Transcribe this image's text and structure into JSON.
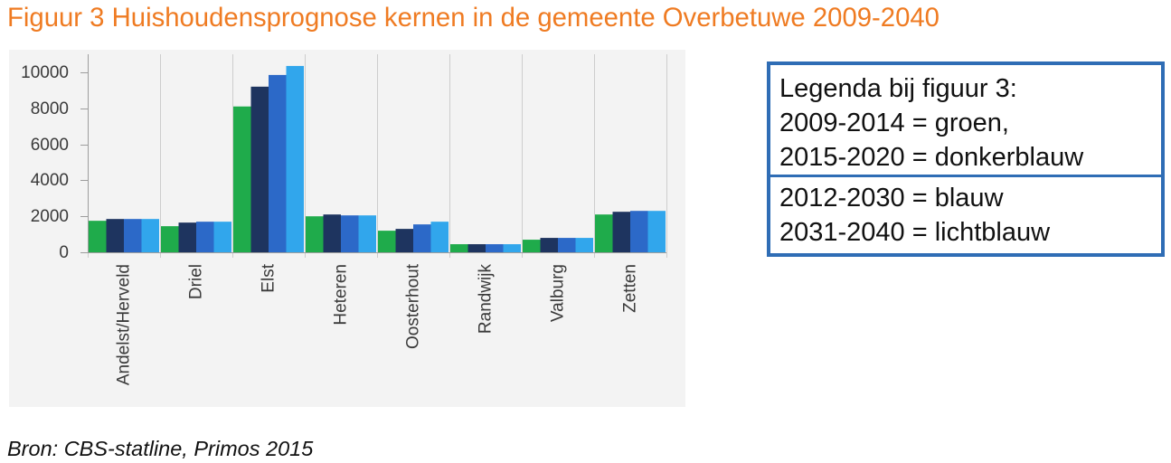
{
  "colors": {
    "title": "#ef7b22",
    "legend_border": "#2f6db5",
    "chart_background": "#f3f3f3"
  },
  "figure": {
    "source": "Bron: CBS-statline, Primos 2015"
  },
  "legend_box": {
    "top_lines": [
      "Legenda bij figuur 3:",
      "2009-2014 = groen,",
      "2015-2020 = donkerblauw"
    ],
    "bottom_lines": [
      "2012-2030 = blauw",
      "2031-2040 = lichtblauw"
    ]
  },
  "chart_data": {
    "type": "bar",
    "title": "Figuur 3 Huishoudensprognose kernen in de gemeente Overbetuwe 2009-2040",
    "categories": [
      "Andelst/Herveld",
      "Driel",
      "Elst",
      "Heteren",
      "Oosterhout",
      "Randwijk",
      "Valburg",
      "Zetten"
    ],
    "series": [
      {
        "color": "#1fab4b",
        "values": [
          1750,
          1450,
          8100,
          2000,
          1200,
          450,
          700,
          2100
        ]
      },
      {
        "color": "#1e345f",
        "values": [
          1850,
          1650,
          9200,
          2100,
          1300,
          450,
          800,
          2250
        ]
      },
      {
        "color": "#2c69c8",
        "values": [
          1850,
          1700,
          9850,
          2050,
          1550,
          450,
          800,
          2300
        ]
      },
      {
        "color": "#31a6ec",
        "values": [
          1850,
          1700,
          10350,
          2050,
          1700,
          450,
          800,
          2300
        ]
      }
    ],
    "ylim": [
      0,
      11000
    ],
    "yticks": [
      0,
      2000,
      4000,
      6000,
      8000,
      10000
    ],
    "grid": "vertical"
  }
}
